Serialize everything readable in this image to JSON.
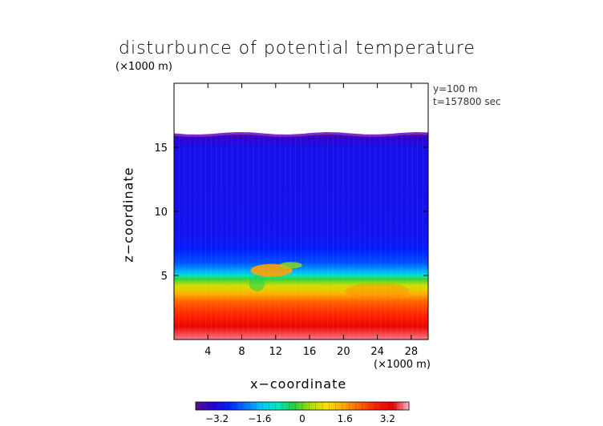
{
  "chart_data": {
    "type": "heatmap",
    "title": "disturbunce of potential temperature",
    "y_unit_label": "(×1000 m)",
    "x_unit_label": "(×1000 m)",
    "xlabel": "x−coordinate",
    "ylabel": "z−coordinate",
    "info": [
      "y=100 m",
      "t=157800 sec"
    ],
    "xlim": [
      0,
      30
    ],
    "ylim": [
      0,
      20
    ],
    "x_ticks": [
      {
        "value": 4,
        "label": "4"
      },
      {
        "value": 8,
        "label": "8"
      },
      {
        "value": 12,
        "label": "12"
      },
      {
        "value": 16,
        "label": "16"
      },
      {
        "value": 20,
        "label": "20"
      },
      {
        "value": 24,
        "label": "24"
      },
      {
        "value": 28,
        "label": "28"
      }
    ],
    "y_ticks": [
      {
        "value": 5,
        "label": "5"
      },
      {
        "value": 10,
        "label": "10"
      },
      {
        "value": 15,
        "label": "15"
      }
    ],
    "data_top_z": 16.0,
    "field_profile_z": [
      0.0,
      1.0,
      2.0,
      3.0,
      3.6,
      4.2,
      4.7,
      5.0,
      5.4,
      6.0,
      7.0,
      8.0,
      12.0,
      15.0,
      15.8,
      16.0
    ],
    "field_profile_value": [
      3.8,
      3.3,
      2.7,
      2.1,
      1.4,
      0.6,
      -0.2,
      -1.0,
      -1.8,
      -2.4,
      -2.8,
      -3.0,
      -3.1,
      -3.1,
      -3.5,
      -4.0
    ],
    "colorbar": {
      "vmin": -4.0,
      "vmax": 4.0,
      "ticks": [
        {
          "value": -3.2,
          "label": "−3.2"
        },
        {
          "value": -1.6,
          "label": "−1.6"
        },
        {
          "value": 0,
          "label": "0"
        },
        {
          "value": 1.6,
          "label": "1.6"
        },
        {
          "value": 3.2,
          "label": "3.2"
        }
      ],
      "colors": [
        "#5a0f8c",
        "#2a00d8",
        "#0020ff",
        "#0070ff",
        "#00c8ff",
        "#00e8c0",
        "#20d040",
        "#a8e000",
        "#ffe000",
        "#ffa800",
        "#ff6000",
        "#ff2000",
        "#e80000",
        "#ffb8c8"
      ]
    }
  }
}
